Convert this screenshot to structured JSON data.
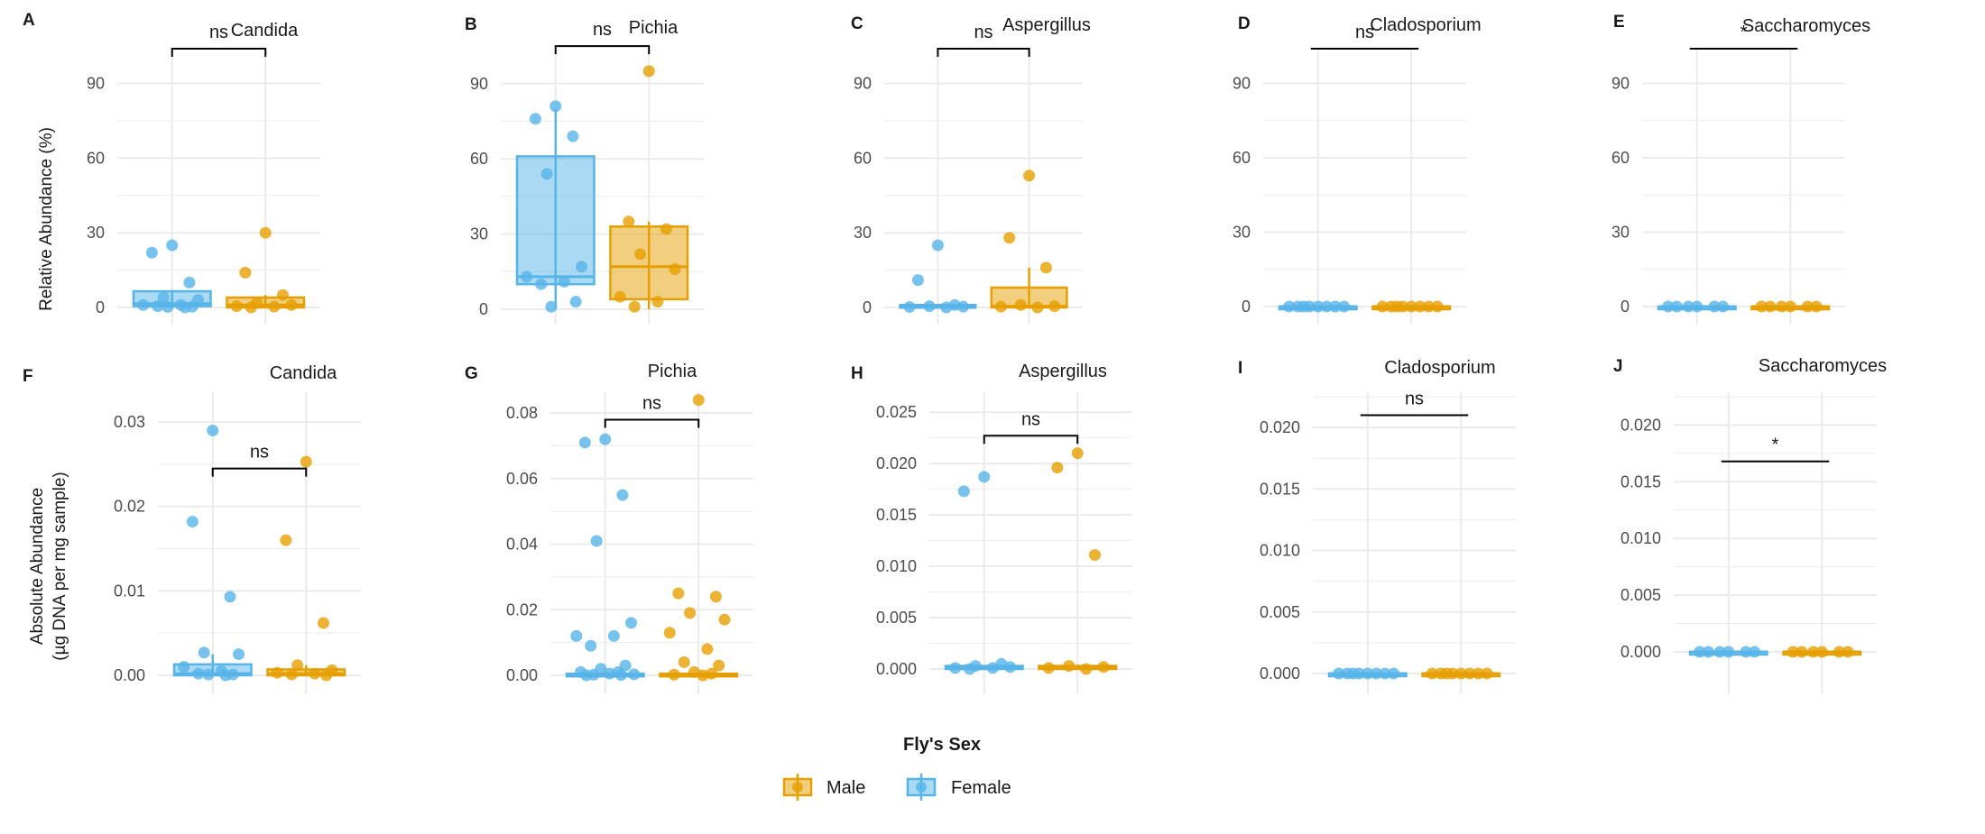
{
  "colors": {
    "male": "#E69F00",
    "female": "#56B4E9",
    "grid": "#EBEBEB",
    "text": "#4D4D4D",
    "title": "#1A1A1A"
  },
  "y_labels": {
    "top": "Relative Abundance (%)",
    "bottom_line1": "Absolute Abundance",
    "bottom_line2": "(µg DNA per mg sample)"
  },
  "legend": {
    "title": "Fly's Sex",
    "items": [
      {
        "label": "Male",
        "color_key": "male"
      },
      {
        "label": "Female",
        "color_key": "female"
      }
    ]
  },
  "chart_data": [
    {
      "type": "box",
      "letter": "A",
      "title": "Candida",
      "ylim": [
        0,
        100
      ],
      "ticks": [
        0,
        30,
        60,
        90
      ],
      "tick_labels": [
        "0",
        "30",
        "60",
        "90"
      ],
      "sig": "ns",
      "sig_y": 104,
      "bracket": true,
      "groups": [
        {
          "name": "Female",
          "color_key": "female",
          "box": {
            "q1": 0.5,
            "median": 1.5,
            "q3": 6.5,
            "lo": 0,
            "hi": 7
          },
          "points": [
            25,
            22,
            10,
            4,
            3,
            1,
            1,
            0.5,
            0.3,
            0.2,
            0
          ]
        },
        {
          "name": "Male",
          "color_key": "male",
          "box": {
            "q1": 0,
            "median": 1,
            "q3": 4,
            "lo": 0,
            "hi": 5
          },
          "points": [
            30,
            14,
            5,
            2,
            1,
            0.5,
            0.3,
            0
          ]
        }
      ]
    },
    {
      "type": "box",
      "letter": "B",
      "title": "Pichia",
      "ylim": [
        0,
        100
      ],
      "ticks": [
        0,
        30,
        60,
        90
      ],
      "tick_labels": [
        "0",
        "30",
        "60",
        "90"
      ],
      "sig": "ns",
      "sig_y": 105,
      "bracket": true,
      "groups": [
        {
          "name": "Female",
          "color_key": "female",
          "box": {
            "q1": 10,
            "median": 13,
            "q3": 61,
            "lo": 0,
            "hi": 80
          },
          "points": [
            81,
            76,
            69,
            54,
            17,
            13,
            11,
            10,
            3,
            1
          ]
        },
        {
          "name": "Male",
          "color_key": "male",
          "box": {
            "q1": 4,
            "median": 17,
            "q3": 33,
            "lo": 0,
            "hi": 35
          },
          "points": [
            95,
            35,
            32,
            22,
            16,
            5,
            3,
            1
          ]
        }
      ]
    },
    {
      "type": "box",
      "letter": "C",
      "title": "Aspergillus",
      "ylim": [
        0,
        100
      ],
      "ticks": [
        0,
        30,
        60,
        90
      ],
      "tick_labels": [
        "0",
        "30",
        "60",
        "90"
      ],
      "sig": "ns",
      "sig_y": 104,
      "bracket": true,
      "groups": [
        {
          "name": "Female",
          "color_key": "female",
          "box": {
            "q1": 0,
            "median": 0.3,
            "q3": 1,
            "lo": 0,
            "hi": 1
          },
          "points": [
            25,
            11,
            1,
            0.5,
            0.3,
            0.2,
            0
          ]
        },
        {
          "name": "Male",
          "color_key": "male",
          "box": {
            "q1": 0,
            "median": 0.5,
            "q3": 8,
            "lo": 0,
            "hi": 16
          },
          "points": [
            53,
            28,
            16,
            1,
            0.5,
            0.3,
            0
          ]
        }
      ]
    },
    {
      "type": "box",
      "letter": "D",
      "title": "Cladosporium",
      "ylim": [
        0,
        100
      ],
      "ticks": [
        0,
        30,
        60,
        90
      ],
      "tick_labels": [
        "0",
        "30",
        "60",
        "90"
      ],
      "sig": "ns",
      "sig_y": 104,
      "bracket": false,
      "groups": [
        {
          "name": "Female",
          "color_key": "female",
          "box": {
            "q1": 0,
            "median": 0,
            "q3": 0,
            "lo": 0,
            "hi": 0
          },
          "points": [
            0,
            0,
            0,
            0,
            0,
            0,
            0,
            0
          ]
        },
        {
          "name": "Male",
          "color_key": "male",
          "box": {
            "q1": 0,
            "median": 0,
            "q3": 0,
            "lo": 0,
            "hi": 0
          },
          "points": [
            0,
            0,
            0,
            0,
            0,
            0,
            0,
            0
          ]
        }
      ]
    },
    {
      "type": "box",
      "letter": "E",
      "title": "Saccharomyces",
      "ylim": [
        0,
        100
      ],
      "ticks": [
        0,
        30,
        60,
        90
      ],
      "tick_labels": [
        "0",
        "30",
        "60",
        "90"
      ],
      "sig": "*",
      "sig_y": 104,
      "bracket": false,
      "groups": [
        {
          "name": "Female",
          "color_key": "female",
          "box": {
            "q1": 0,
            "median": 0,
            "q3": 0,
            "lo": 0,
            "hi": 0
          },
          "points": [
            0,
            0,
            0,
            0,
            0,
            0
          ]
        },
        {
          "name": "Male",
          "color_key": "male",
          "box": {
            "q1": 0,
            "median": 0,
            "q3": 0,
            "lo": 0,
            "hi": 0
          },
          "points": [
            0,
            0,
            0,
            0,
            0,
            0
          ]
        }
      ]
    },
    {
      "type": "box",
      "letter": "F",
      "title": "Candida",
      "ylim": [
        0,
        0.033
      ],
      "ticks": [
        0,
        0.01,
        0.02,
        0.03
      ],
      "tick_labels": [
        "0.00",
        "0.01",
        "0.02",
        "0.03"
      ],
      "sig": "ns",
      "sig_y": 0.0245,
      "bracket": true,
      "groups": [
        {
          "name": "Female",
          "color_key": "female",
          "box": {
            "q1": 0,
            "median": 0.0002,
            "q3": 0.0013,
            "lo": 0,
            "hi": 0.0025
          },
          "points": [
            0.029,
            0.0182,
            0.0093,
            0.0027,
            0.0025,
            0.001,
            0.0005,
            0.0002,
            0.0001,
            0.0001,
            0
          ]
        },
        {
          "name": "Male",
          "color_key": "male",
          "box": {
            "q1": 0,
            "median": 0.0002,
            "q3": 0.0007,
            "lo": 0,
            "hi": 0.0012
          },
          "points": [
            0.0253,
            0.016,
            0.0062,
            0.0012,
            0.0006,
            0.0003,
            0.0002,
            0.0001,
            0
          ]
        }
      ]
    },
    {
      "type": "box",
      "letter": "G",
      "title": "Pichia",
      "ylim": [
        0,
        0.085
      ],
      "ticks": [
        0,
        0.02,
        0.04,
        0.06,
        0.08
      ],
      "tick_labels": [
        "0.00",
        "0.02",
        "0.04",
        "0.06",
        "0.08"
      ],
      "sig": "ns",
      "sig_y": 0.078,
      "bracket": true,
      "groups": [
        {
          "name": "Female",
          "color_key": "female",
          "box": {
            "q1": 0,
            "median": 0,
            "q3": 0.0005,
            "lo": 0,
            "hi": 0.001
          },
          "points": [
            0.072,
            0.071,
            0.055,
            0.041,
            0.016,
            0.012,
            0.012,
            0.009,
            0.003,
            0.002,
            0.001,
            0.001,
            0.0005,
            0.0003,
            0.0002,
            0.0001,
            0
          ]
        },
        {
          "name": "Male",
          "color_key": "male",
          "box": {
            "q1": 0,
            "median": 0,
            "q3": 0.0005,
            "lo": 0,
            "hi": 0.001
          },
          "points": [
            0.084,
            0.025,
            0.024,
            0.019,
            0.017,
            0.013,
            0.008,
            0.004,
            0.003,
            0.001,
            0.0005,
            0.0002,
            0
          ]
        }
      ]
    },
    {
      "type": "box",
      "letter": "H",
      "title": "Aspergillus",
      "ylim": [
        0,
        0.0265
      ],
      "ticks": [
        0,
        0.005,
        0.01,
        0.015,
        0.02,
        0.025
      ],
      "tick_labels": [
        "0.000",
        "0.005",
        "0.010",
        "0.015",
        "0.020",
        "0.025"
      ],
      "sig": "ns",
      "sig_y": 0.0227,
      "bracket": true,
      "groups": [
        {
          "name": "Female",
          "color_key": "female",
          "box": {
            "q1": 0,
            "median": 0.0001,
            "q3": 0.0003,
            "lo": 0,
            "hi": 0.0004
          },
          "points": [
            0.0187,
            0.0173,
            0.0005,
            0.0003,
            0.0002,
            0.0001,
            0.0001,
            0
          ]
        },
        {
          "name": "Male",
          "color_key": "male",
          "box": {
            "q1": 0,
            "median": 0.0001,
            "q3": 0.0003,
            "lo": 0,
            "hi": 0.0004
          },
          "points": [
            0.021,
            0.0196,
            0.0111,
            0.0003,
            0.0002,
            0.0001,
            0
          ]
        }
      ]
    },
    {
      "type": "box",
      "letter": "I",
      "title": "Cladosporium",
      "ylim": [
        0,
        0.0225
      ],
      "ticks": [
        0,
        0.005,
        0.01,
        0.015,
        0.02
      ],
      "tick_labels": [
        "0.000",
        "0.005",
        "0.010",
        "0.015",
        "0.020"
      ],
      "sig": "ns",
      "sig_y": 0.021,
      "bracket": false,
      "groups": [
        {
          "name": "Female",
          "color_key": "female",
          "box": {
            "q1": 0,
            "median": 0,
            "q3": 0,
            "lo": 0,
            "hi": 0
          },
          "points": [
            0,
            0,
            0,
            0,
            0,
            0,
            0,
            0
          ]
        },
        {
          "name": "Male",
          "color_key": "male",
          "box": {
            "q1": 0,
            "median": 0,
            "q3": 0,
            "lo": 0,
            "hi": 0
          },
          "points": [
            0,
            0,
            0,
            0,
            0,
            0,
            0,
            0
          ]
        }
      ]
    },
    {
      "type": "box",
      "letter": "J",
      "title": "Saccharomyces",
      "ylim": [
        0,
        0.0225
      ],
      "ticks": [
        0,
        0.005,
        0.01,
        0.015,
        0.02
      ],
      "tick_labels": [
        "0.000",
        "0.005",
        "0.010",
        "0.015",
        "0.020"
      ],
      "sig": "*",
      "sig_y": 0.0168,
      "bracket": false,
      "groups": [
        {
          "name": "Female",
          "color_key": "female",
          "box": {
            "q1": 0,
            "median": 0,
            "q3": 0,
            "lo": 0,
            "hi": 0
          },
          "points": [
            0,
            0,
            0,
            0,
            0,
            0
          ]
        },
        {
          "name": "Male",
          "color_key": "male",
          "box": {
            "q1": 0,
            "median": 0,
            "q3": 0,
            "lo": 0,
            "hi": 0
          },
          "points": [
            0,
            0,
            0,
            0,
            0,
            0
          ]
        }
      ]
    }
  ]
}
